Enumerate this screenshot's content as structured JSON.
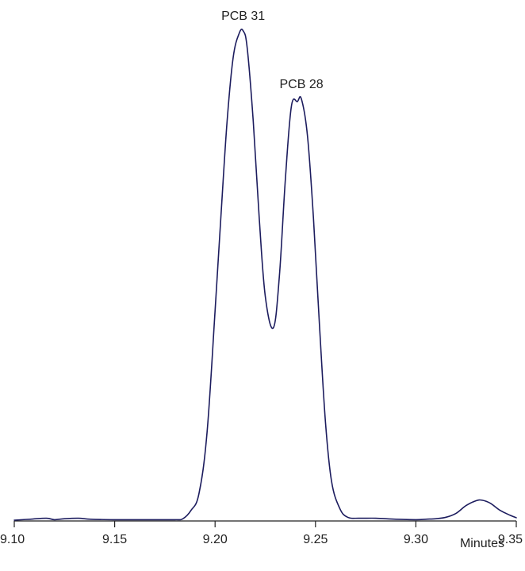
{
  "chart_data": {
    "type": "line",
    "title": "",
    "xlabel": "Minutes",
    "ylabel": "",
    "xlim": [
      9.1,
      9.35
    ],
    "ylim": [
      0,
      1
    ],
    "x_ticks": [
      "9.10",
      "9.15",
      "9.20",
      "9.25",
      "9.30",
      "9.35"
    ],
    "x_tick_values": [
      9.1,
      9.15,
      9.2,
      9.25,
      9.3,
      9.35
    ],
    "grid": false,
    "line_color": "#1c1c5e",
    "series": [
      {
        "x": [
          9.1,
          9.108,
          9.116,
          9.12,
          9.125,
          9.132,
          9.138,
          9.15,
          9.16,
          9.17,
          9.18,
          9.184,
          9.188,
          9.192,
          9.196,
          9.2,
          9.203,
          9.206,
          9.209,
          9.212,
          9.214,
          9.216,
          9.219,
          9.222,
          9.225,
          9.229,
          9.232,
          9.235,
          9.238,
          9.241,
          9.243,
          9.246,
          9.249,
          9.252,
          9.255,
          9.258,
          9.262,
          9.266,
          9.272,
          9.28,
          9.29,
          9.3,
          9.305,
          9.31,
          9.315,
          9.32,
          9.325,
          9.33,
          9.333,
          9.337,
          9.342,
          9.347,
          9.35
        ],
        "y": [
          0.0,
          0.002,
          0.004,
          0.001,
          0.003,
          0.004,
          0.002,
          0.001,
          0.001,
          0.001,
          0.001,
          0.003,
          0.02,
          0.055,
          0.18,
          0.43,
          0.63,
          0.82,
          0.95,
          1.0,
          1.005,
          0.97,
          0.82,
          0.62,
          0.46,
          0.395,
          0.5,
          0.7,
          0.85,
          0.86,
          0.865,
          0.79,
          0.62,
          0.4,
          0.2,
          0.08,
          0.025,
          0.006,
          0.004,
          0.004,
          0.002,
          0.001,
          0.002,
          0.003,
          0.006,
          0.014,
          0.03,
          0.04,
          0.041,
          0.035,
          0.02,
          0.01,
          0.005
        ]
      }
    ],
    "annotations": [
      {
        "text": "PCB 31",
        "x": 9.214,
        "y": 1.005
      },
      {
        "text": "PCB 28",
        "x": 9.243,
        "y": 0.865
      }
    ]
  }
}
